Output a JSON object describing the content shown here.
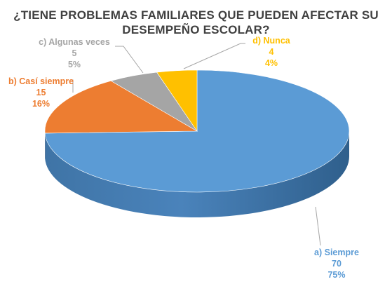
{
  "chart_data": {
    "type": "pie",
    "style": "3d",
    "title_lines": [
      "¿TIENE PROBLEMAS FAMILIARES QUE PUEDEN AFECTAR SU",
      "DESEMPEÑO ESCOLAR?"
    ],
    "slices": [
      {
        "label": "a) Siempre",
        "value": 70,
        "percent": "75%",
        "color": "#5B9BD5",
        "label_color": "#5B9BD5"
      },
      {
        "label": "b) Casí siempre",
        "value": 15,
        "percent": "16%",
        "color": "#ED7D31",
        "label_color": "#ED7D31"
      },
      {
        "label": "c) Algunas veces",
        "value": 5,
        "percent": "5%",
        "color": "#A5A5A5",
        "label_color": "#A5A5A5"
      },
      {
        "label": "d) Nunca",
        "value": 4,
        "percent": "4%",
        "color": "#FFC000",
        "label_color": "#FFC000"
      }
    ],
    "legend": "none",
    "data_labels": "outside with leader lines"
  }
}
